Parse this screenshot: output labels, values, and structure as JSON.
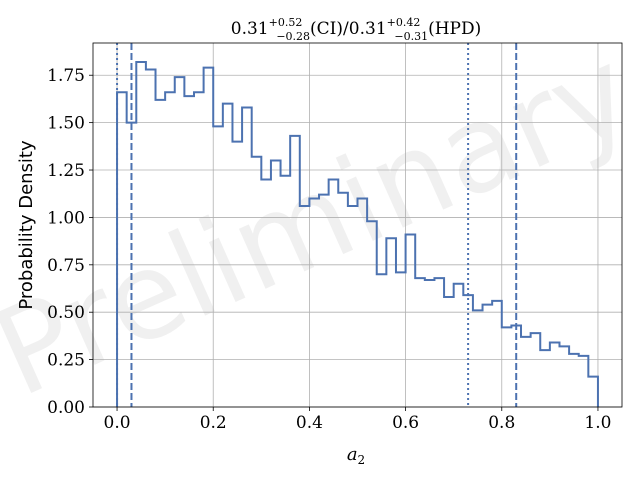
{
  "watermark": "Preliminary",
  "chart_data": {
    "type": "histogram",
    "title": {
      "ci_value": "0.31",
      "ci_plus": "+0.52",
      "ci_minus": "−0.28",
      "ci_label": "(CI)",
      "separator": "/",
      "hpd_value": "0.31",
      "hpd_plus": "+0.42",
      "hpd_minus": "−0.31",
      "hpd_label": "(HPD)"
    },
    "xlabel_base": "a",
    "xlabel_sub": "2",
    "ylabel": "Probability Density",
    "xlim": [
      -0.05,
      1.05
    ],
    "ylim": [
      0,
      1.92
    ],
    "xticks": [
      0.0,
      0.2,
      0.4,
      0.6,
      0.8,
      1.0
    ],
    "xtick_labels": [
      "0.0",
      "0.2",
      "0.4",
      "0.6",
      "0.8",
      "1.0"
    ],
    "yticks": [
      0.0,
      0.25,
      0.5,
      0.75,
      1.0,
      1.25,
      1.5,
      1.75
    ],
    "ytick_labels": [
      "0.00",
      "0.25",
      "0.50",
      "0.75",
      "1.00",
      "1.25",
      "1.50",
      "1.75"
    ],
    "grid": true,
    "line_color": "#4c72b0",
    "bin_edges": [
      0.0,
      0.02,
      0.04,
      0.06,
      0.08,
      0.1,
      0.12,
      0.14,
      0.16,
      0.18,
      0.2,
      0.22,
      0.24,
      0.26,
      0.28,
      0.3,
      0.32,
      0.34,
      0.36,
      0.38,
      0.4,
      0.42,
      0.44,
      0.46,
      0.48,
      0.5,
      0.52,
      0.54,
      0.56,
      0.58,
      0.6,
      0.62,
      0.64,
      0.66,
      0.68,
      0.7,
      0.72,
      0.74,
      0.76,
      0.78,
      0.8,
      0.82,
      0.84,
      0.86,
      0.88,
      0.9,
      0.92,
      0.94,
      0.96,
      0.98,
      1.0
    ],
    "densities": [
      1.66,
      1.5,
      1.82,
      1.78,
      1.62,
      1.66,
      1.74,
      1.64,
      1.66,
      1.79,
      1.48,
      1.6,
      1.4,
      1.58,
      1.32,
      1.2,
      1.3,
      1.22,
      1.43,
      1.06,
      1.1,
      1.12,
      1.2,
      1.13,
      1.06,
      1.1,
      0.98,
      0.7,
      0.89,
      0.71,
      0.91,
      0.68,
      0.67,
      0.68,
      0.58,
      0.65,
      0.59,
      0.51,
      0.54,
      0.56,
      0.42,
      0.43,
      0.37,
      0.39,
      0.3,
      0.34,
      0.32,
      0.28,
      0.27,
      0.16
    ],
    "vlines": [
      {
        "name": "hpd-lower",
        "x": 0.0,
        "style": "dotted"
      },
      {
        "name": "ci-lower",
        "x": 0.03,
        "style": "dashed"
      },
      {
        "name": "hpd-upper",
        "x": 0.73,
        "style": "dotted"
      },
      {
        "name": "ci-upper",
        "x": 0.83,
        "style": "dashed"
      }
    ]
  }
}
